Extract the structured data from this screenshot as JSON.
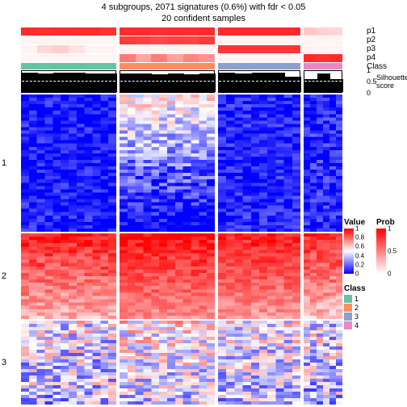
{
  "title_line1": "4 subgroups, 2071 signatures (0.6%) with fdr < 0.05",
  "title_line2": "20 confident samples",
  "layout": {
    "group_widths": [
      118,
      118,
      102,
      48
    ],
    "group_cols": [
      6,
      6,
      5,
      3
    ],
    "gap": 4,
    "block_heights": [
      170,
      106,
      104
    ],
    "sil_height": 28,
    "annot_height": 10,
    "class_height": 8
  },
  "annot_rows": [
    {
      "label": "p1",
      "values": [
        [
          0.95,
          0.93,
          0.95,
          0.94,
          0.95,
          0.92
        ],
        [
          0.94,
          0.95,
          0.93,
          0.95,
          0.94,
          0.95
        ],
        [
          0.95,
          0.95,
          0.95,
          0.95,
          0.95
        ],
        [
          0.25,
          0.2,
          0.18
        ]
      ]
    },
    {
      "label": "p2",
      "values": [
        [
          0.05,
          0.05,
          0.05,
          0.05,
          0.05,
          0.05
        ],
        [
          0.88,
          0.86,
          0.82,
          0.86,
          0.84,
          0.88
        ],
        [
          0.05,
          0.05,
          0.05,
          0.05,
          0.05
        ],
        [
          0.05,
          0.05,
          0.05
        ]
      ]
    },
    {
      "label": "p3",
      "values": [
        [
          0.05,
          0.18,
          0.22,
          0.12,
          0.05,
          0.05
        ],
        [
          0.05,
          0.05,
          0.05,
          0.05,
          0.05,
          0.05
        ],
        [
          0.9,
          0.9,
          0.9,
          0.9,
          0.9
        ],
        [
          0.05,
          0.05,
          0.05
        ]
      ]
    },
    {
      "label": "p4",
      "values": [
        [
          0.05,
          0.05,
          0.05,
          0.05,
          0.05,
          0.05
        ],
        [
          0.6,
          0.4,
          0.58,
          0.42,
          0.55,
          0.48
        ],
        [
          0.05,
          0.05,
          0.05,
          0.05,
          0.05
        ],
        [
          0.95,
          0.92,
          0.95
        ]
      ]
    }
  ],
  "class_row": {
    "label": "Class",
    "colors": [
      [
        "#66c2a5",
        "#66c2a5",
        "#66c2a5",
        "#66c2a5",
        "#66c2a5",
        "#66c2a5"
      ],
      [
        "#fc8d62",
        "#fc8d62",
        "#fc8d62",
        "#fc8d62",
        "#fc8d62",
        "#fc8d62"
      ],
      [
        "#8da0cb",
        "#8da0cb",
        "#8da0cb",
        "#8da0cb",
        "#8da0cb"
      ],
      [
        "#e78ac3",
        "#e78ac3",
        "#e78ac3"
      ]
    ]
  },
  "silhouette": {
    "label": "Silhouette\nscore",
    "ticks": [
      "1",
      "0.5",
      "0"
    ],
    "dash_at": 0.5,
    "values": [
      [
        0.92,
        0.9,
        0.91,
        0.93,
        0.9,
        0.89
      ],
      [
        0.88,
        0.9,
        0.85,
        0.89,
        0.86,
        0.9
      ],
      [
        0.93,
        0.9,
        0.92,
        0.91,
        0.72
      ],
      [
        0.6,
        0.88,
        0.6
      ]
    ]
  },
  "heatmap_blocks": [
    {
      "label": "1",
      "rows": 42,
      "seeds": [
        {
          "base": 0.05,
          "grad": 0.0,
          "noise": 0.12
        },
        {
          "base": 0.55,
          "grad": -0.015,
          "noise": 0.18
        },
        {
          "base": 0.07,
          "grad": 0.0,
          "noise": 0.12
        },
        {
          "base": 0.08,
          "grad": 0.0,
          "noise": 0.14
        }
      ]
    },
    {
      "label": "2",
      "rows": 26,
      "seeds": [
        {
          "base": 0.95,
          "grad": -0.012,
          "noise": 0.1
        },
        {
          "base": 0.97,
          "grad": -0.01,
          "noise": 0.08
        },
        {
          "base": 0.95,
          "grad": -0.01,
          "noise": 0.08
        },
        {
          "base": 0.92,
          "grad": -0.012,
          "noise": 0.1
        }
      ]
    },
    {
      "label": "3",
      "rows": 26,
      "seeds": [
        {
          "base": 0.48,
          "grad": -0.004,
          "noise": 0.28
        },
        {
          "base": 0.55,
          "grad": -0.006,
          "noise": 0.25
        },
        {
          "base": 0.5,
          "grad": -0.005,
          "noise": 0.26
        },
        {
          "base": 0.46,
          "grad": -0.004,
          "noise": 0.28
        }
      ]
    }
  ],
  "legends": {
    "value": {
      "title": "Value",
      "top_color": "#ff0000",
      "mid_color": "#ffffff",
      "bot_color": "#0000ff",
      "ticks": [
        "1",
        "0.8",
        "0.6",
        "0.4",
        "0.2",
        "0"
      ]
    },
    "prob": {
      "title": "Prob",
      "top_color": "#ff0000",
      "bot_color": "#ffffff",
      "ticks": [
        "1",
        "0.5",
        "0"
      ]
    },
    "class": {
      "title": "Class",
      "items": [
        {
          "c": "#66c2a5",
          "l": "1"
        },
        {
          "c": "#fc8d62",
          "l": "2"
        },
        {
          "c": "#8da0cb",
          "l": "3"
        },
        {
          "c": "#e78ac3",
          "l": "4"
        }
      ]
    }
  },
  "colors": {
    "prob_high": "#ff2020",
    "prob_low": "#ffffff",
    "val_high": "#ff0000",
    "val_mid": "#ffffff",
    "val_low": "#0000ff",
    "bg": "#ffffff",
    "text": "#000000"
  }
}
